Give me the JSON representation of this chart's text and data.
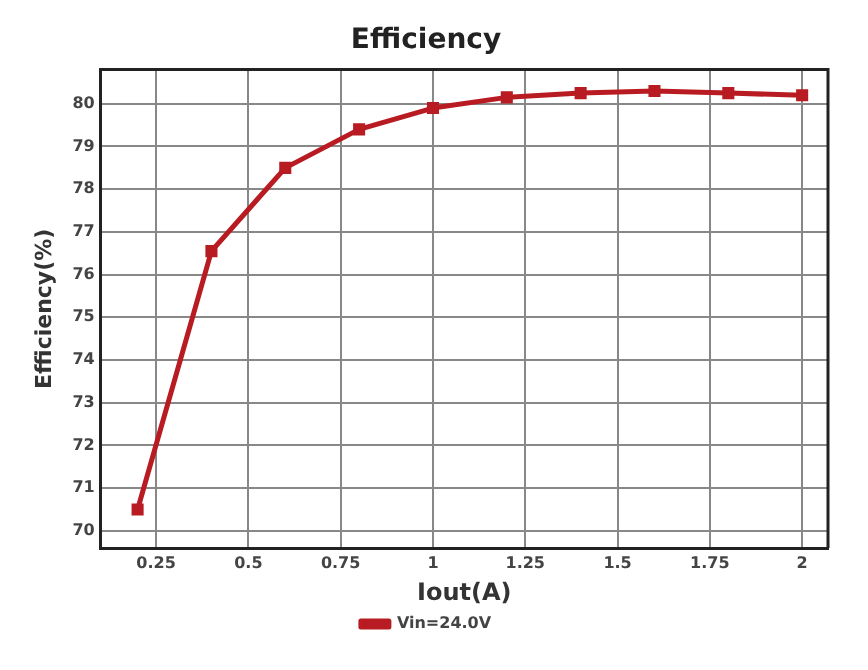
{
  "chart_data": {
    "type": "line",
    "title": "Efficiency",
    "xlabel": "Iout(A)",
    "ylabel": "Efficiency(%)",
    "x": [
      0.2,
      0.4,
      0.6,
      0.8,
      1.0,
      1.2,
      1.4,
      1.6,
      1.8,
      2.0
    ],
    "series": [
      {
        "name": "Vin=24.0V",
        "color": "#b81c22",
        "values": [
          70.5,
          76.55,
          78.5,
          79.4,
          79.9,
          80.15,
          80.25,
          80.3,
          80.25,
          80.2
        ]
      }
    ],
    "xlim": [
      0.1,
      2.07
    ],
    "xticks": [
      0.25,
      0.5,
      0.75,
      1,
      1.25,
      1.5,
      1.75,
      2
    ],
    "ylim": [
      69.6,
      80.8
    ],
    "yticks": [
      70,
      71,
      72,
      73,
      74,
      75,
      76,
      77,
      78,
      79,
      80
    ],
    "grid": true,
    "legend": "bottom",
    "marker": "square",
    "line_style": "solid"
  }
}
